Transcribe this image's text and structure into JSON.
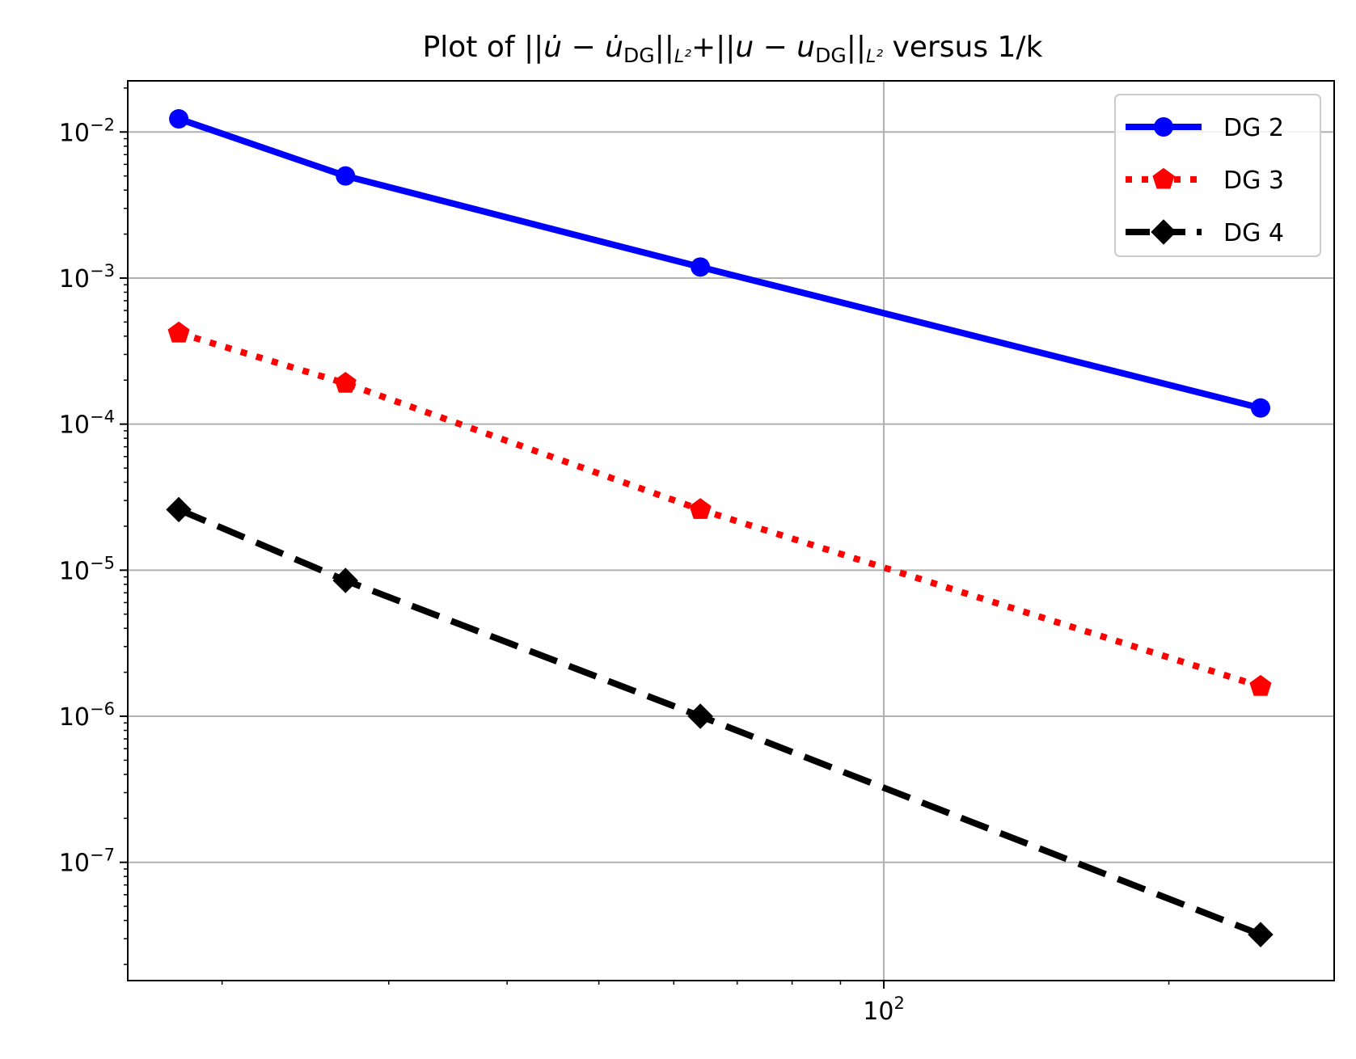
{
  "chart_data": {
    "type": "line",
    "title": {
      "prefix": "Plot of ||",
      "sym1": "u̇",
      "minus1": " − ",
      "sym2": "u̇",
      "sub1": "DG",
      "norm1": "||",
      "norm_sub1": "L²",
      "plus": "+||",
      "sym3": "u",
      "minus2": " − ",
      "sym4": "u",
      "sub2": "DG",
      "norm2": "||",
      "norm_sub2": "L²",
      "suffix": " versus 1/k"
    },
    "xlabel": "",
    "ylabel": "",
    "x_scale": "log",
    "y_scale": "log",
    "xlim": [
      15.9,
      299
    ],
    "ylim": [
      1.55e-08,
      0.0224
    ],
    "grid": true,
    "x_ticks": [
      {
        "value": 100,
        "base": "10",
        "exp": "2"
      }
    ],
    "y_ticks": [
      {
        "value": 0.01,
        "base": "10",
        "exp": "−2"
      },
      {
        "value": 0.001,
        "base": "10",
        "exp": "−3"
      },
      {
        "value": 0.0001,
        "base": "10",
        "exp": "−4"
      },
      {
        "value": 1e-05,
        "base": "10",
        "exp": "−5"
      },
      {
        "value": 1e-06,
        "base": "10",
        "exp": "−6"
      },
      {
        "value": 1e-07,
        "base": "10",
        "exp": "−7"
      }
    ],
    "legend_position": "top-right",
    "series": [
      {
        "name": "DG 2",
        "color": "#0000ff",
        "line_style": "solid",
        "marker": "circle",
        "x": [
          18,
          27,
          64,
          250
        ],
        "y": [
          0.0123,
          0.005,
          0.00119,
          0.000129
        ]
      },
      {
        "name": "DG 3",
        "color": "#ff0000",
        "line_style": "dotted",
        "marker": "pentagon",
        "x": [
          18,
          27,
          64,
          250
        ],
        "y": [
          0.00042,
          0.00019,
          2.6e-05,
          1.6e-06
        ]
      },
      {
        "name": "DG 4",
        "color": "#000000",
        "line_style": "dashed",
        "marker": "diamond",
        "x": [
          18,
          27,
          64,
          250
        ],
        "y": [
          2.6e-05,
          8.5e-06,
          1e-06,
          3.2e-08
        ]
      }
    ]
  }
}
